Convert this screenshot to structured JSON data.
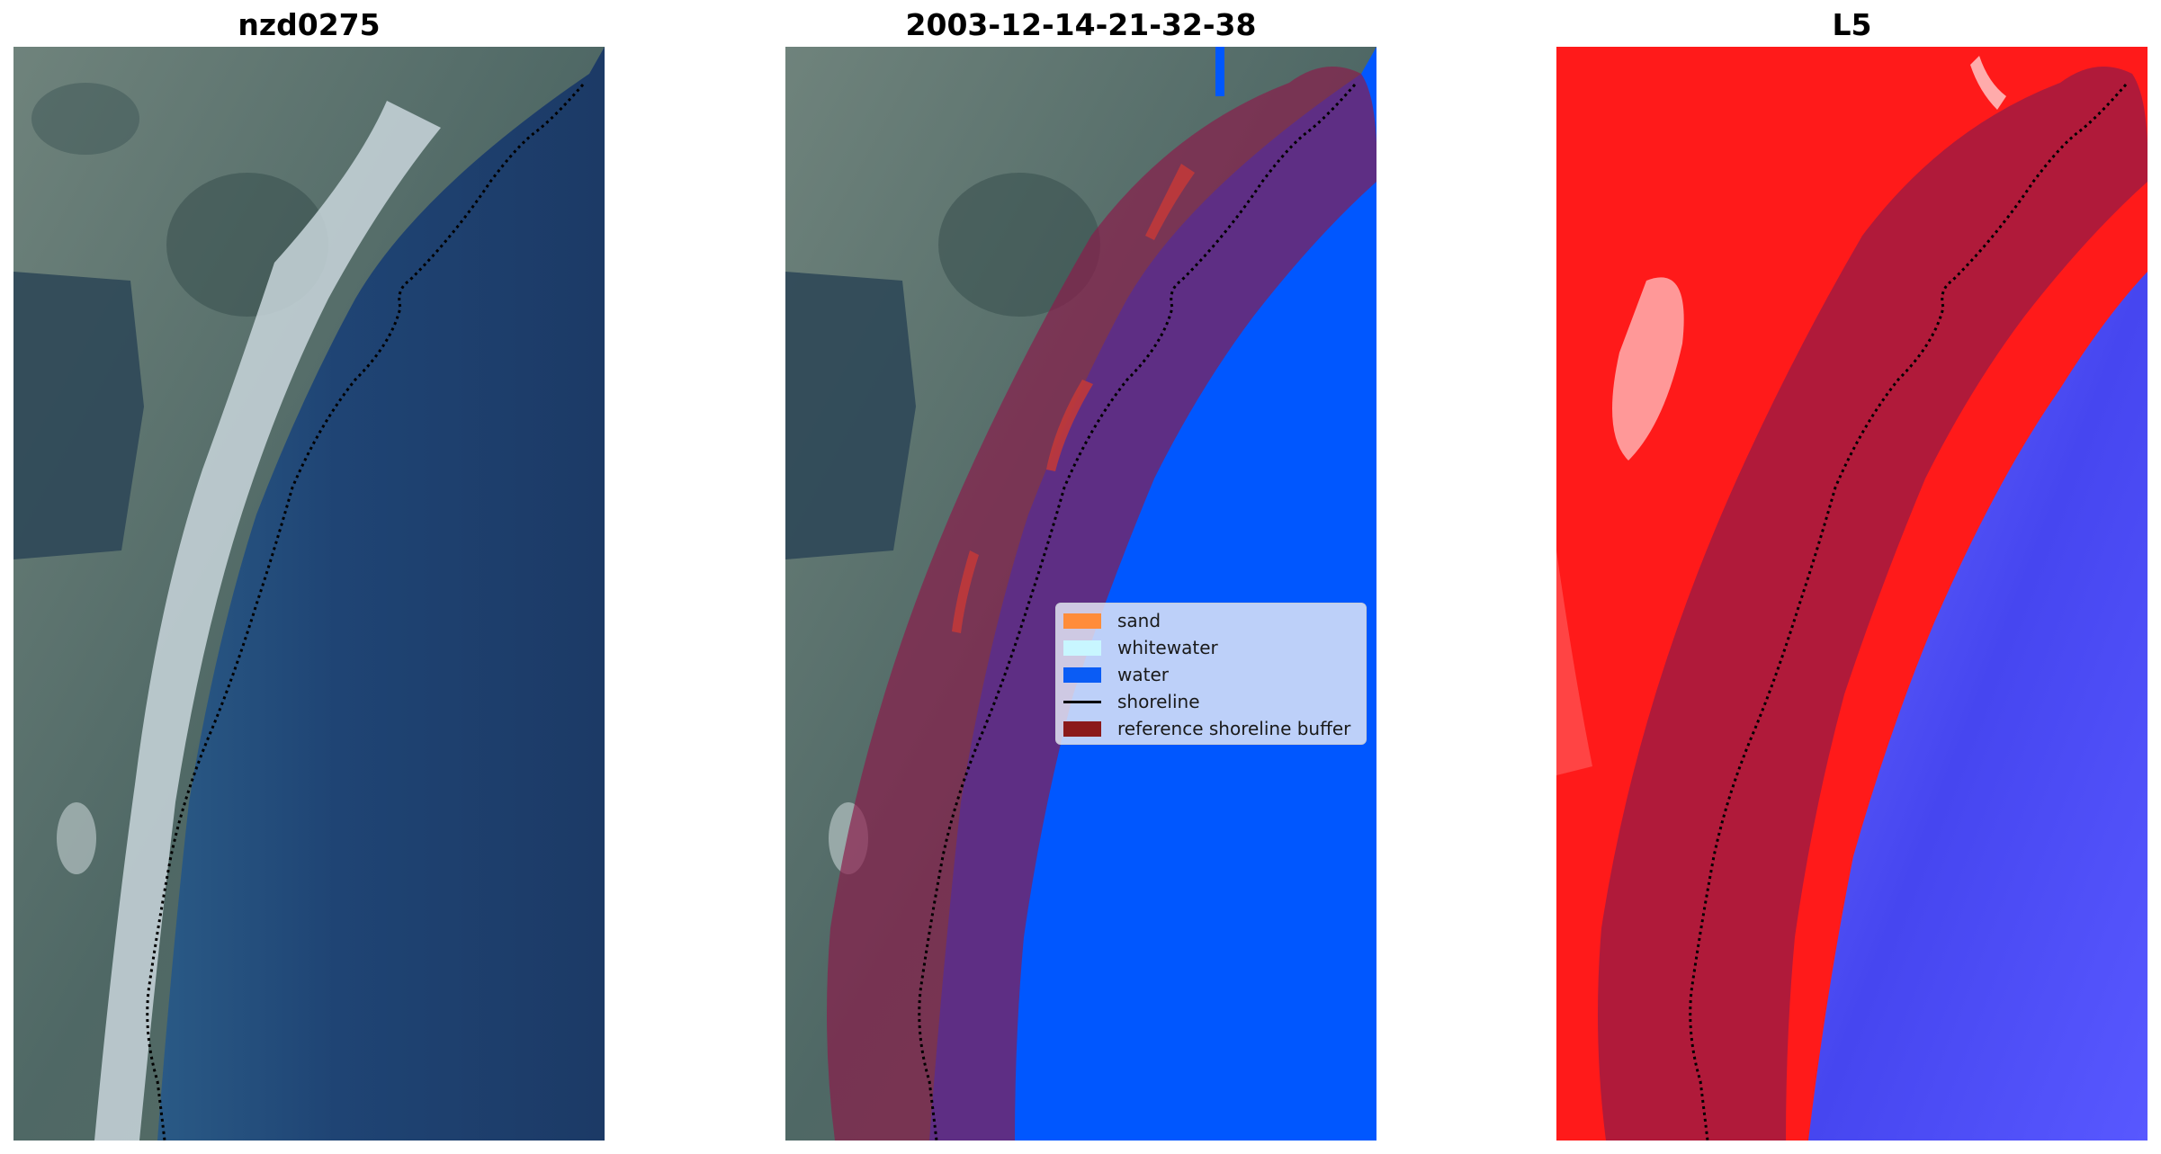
{
  "panels": [
    {
      "title": "nzd0275"
    },
    {
      "title": "2003-12-14-21-32-38"
    },
    {
      "title": "L5"
    }
  ],
  "legend": {
    "items": [
      {
        "label": "sand",
        "color": "#ff8c3a"
      },
      {
        "label": "whitewater",
        "color": "#c8f6ff"
      },
      {
        "label": "water",
        "color": "#0a5cf5"
      },
      {
        "label": "shoreline",
        "color": "#000000"
      },
      {
        "label": "reference shoreline buffer",
        "color": "#8b1a1a"
      }
    ]
  },
  "colors": {
    "land_rgb": "#4d6a66",
    "sea_rgb": "#1f3f6e",
    "classified_water": "#0057ff",
    "buffer_overlay": "#8b1a4a",
    "index_land": "#ff1a1a",
    "index_water": "#4a4aff"
  }
}
